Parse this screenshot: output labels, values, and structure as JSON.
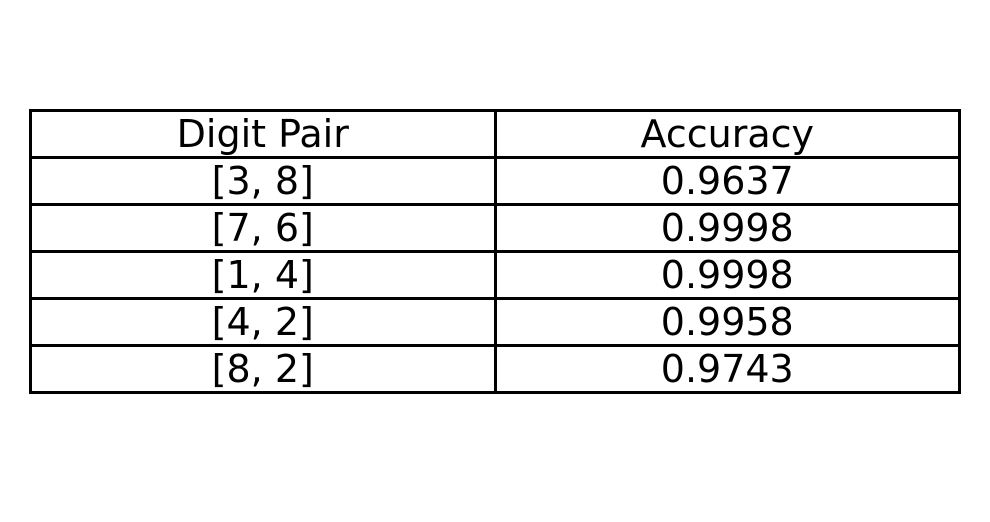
{
  "chart_data": {
    "type": "table",
    "columns": [
      "Digit Pair",
      "Accuracy"
    ],
    "rows": [
      [
        "[3, 8]",
        "0.9637"
      ],
      [
        "[7, 6]",
        "0.9998"
      ],
      [
        "[1, 4]",
        "0.9998"
      ],
      [
        "[4, 2]",
        "0.9958"
      ],
      [
        "[8, 2]",
        "0.9743"
      ]
    ],
    "grid": true,
    "colors": {
      "border": "#000000",
      "text": "#000000",
      "background": "#ffffff"
    }
  }
}
